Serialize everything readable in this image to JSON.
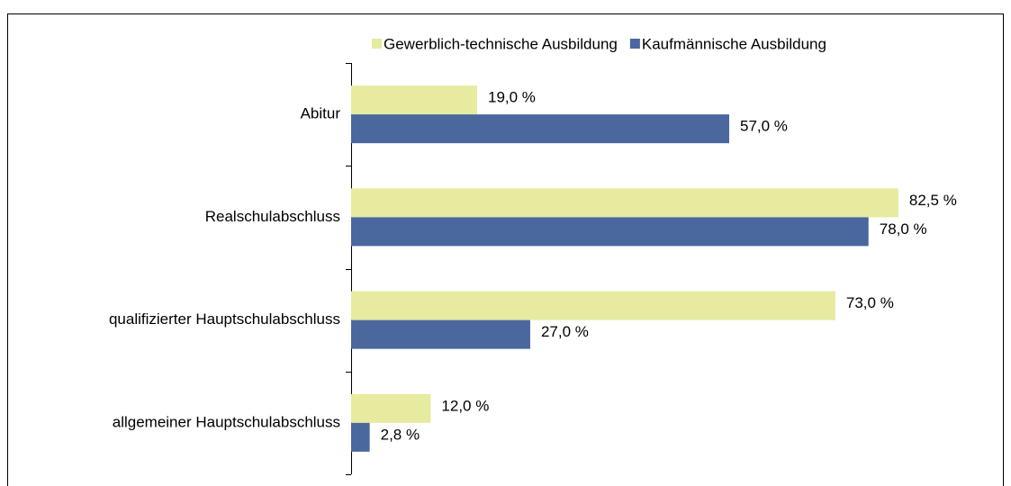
{
  "chart_data": {
    "type": "hbar",
    "categories": [
      "Abitur",
      "Realschulabschluss",
      "qualifizierter Hauptschulabschluss",
      "allgemeiner Hauptschulabschluss"
    ],
    "series": [
      {
        "name": "Gewerblich-technische Ausbildung",
        "color": "#e6eb9f",
        "values": [
          19.0,
          82.5,
          73.0,
          12.0
        ],
        "value_labels": [
          "19,0 %",
          "82,5 %",
          "73,0 %",
          "12,0 %"
        ]
      },
      {
        "name": "Kaufmännische Ausbildung",
        "color": "#4a679e",
        "values": [
          57.0,
          78.0,
          27.0,
          2.8
        ],
        "value_labels": [
          "57,0 %",
          "78,0 %",
          "27,0 %",
          "2,8 %"
        ]
      }
    ],
    "xlim": [
      0,
      95
    ],
    "legend": "top"
  }
}
